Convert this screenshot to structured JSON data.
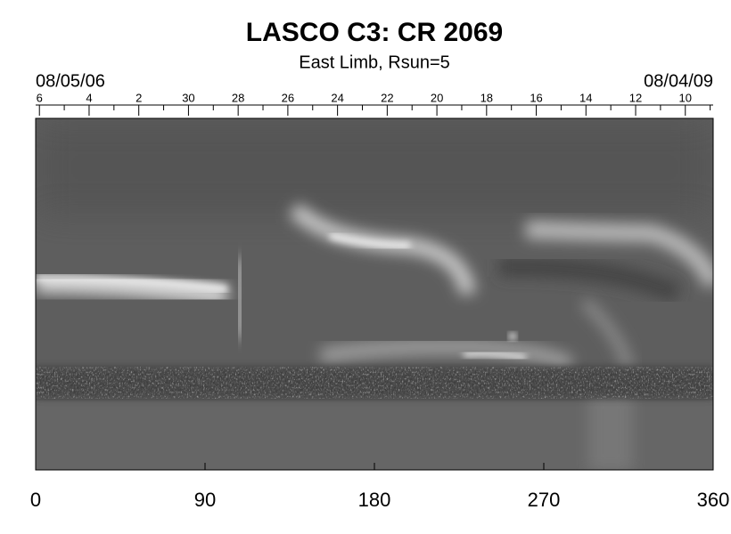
{
  "chart_data": {
    "type": "synoptic",
    "title": "LASCO C3: CR 2069",
    "subtitle": "East Limb, Rsun=5",
    "start_date": "08/05/06",
    "end_date": "08/04/09",
    "xlim": [
      0,
      360
    ],
    "xticks": [
      0,
      90,
      180,
      270,
      360
    ],
    "x2ticks": [
      {
        "value": 2,
        "label": "6"
      },
      {
        "value": 28.4,
        "label": "4"
      },
      {
        "value": 54.8,
        "label": "2"
      },
      {
        "value": 81.2,
        "label": "30"
      },
      {
        "value": 107.6,
        "label": "28"
      },
      {
        "value": 134,
        "label": "26"
      },
      {
        "value": 160.4,
        "label": "24"
      },
      {
        "value": 186.8,
        "label": "22"
      },
      {
        "value": 213.2,
        "label": "20"
      },
      {
        "value": 239.6,
        "label": "18"
      },
      {
        "value": 266,
        "label": "16"
      },
      {
        "value": 292.4,
        "label": "14"
      },
      {
        "value": 318.8,
        "label": "12"
      },
      {
        "value": 345.2,
        "label": "10"
      }
    ],
    "x2minor_ticks": [
      15.2,
      41.6,
      68,
      94.4,
      120.8,
      147.2,
      173.6,
      200,
      226.4,
      252.8,
      279.2,
      305.6,
      332,
      358.4
    ]
  }
}
